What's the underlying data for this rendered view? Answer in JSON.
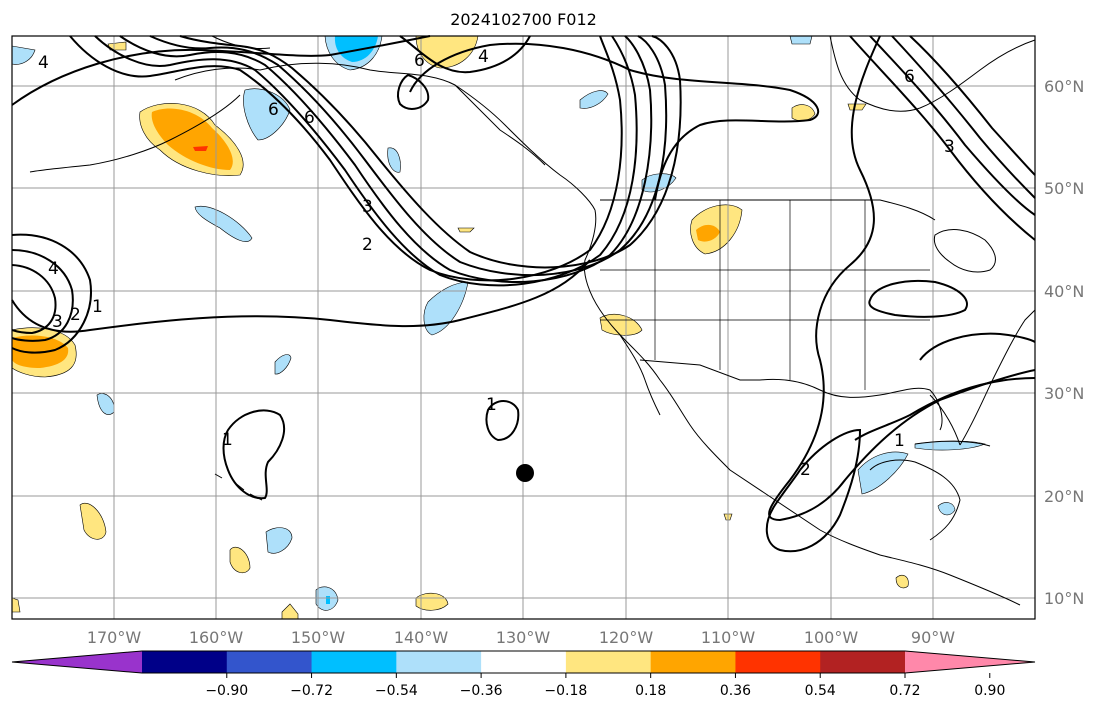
{
  "title": "2024102700 F012",
  "longitude_labels": [
    "170°W",
    "160°W",
    "150°W",
    "140°W",
    "130°W",
    "120°W",
    "110°W",
    "100°W",
    "90°W"
  ],
  "latitude_labels": [
    "10°N",
    "20°N",
    "30°N",
    "40°N",
    "50°N",
    "60°N"
  ],
  "colorbar": {
    "colors": [
      "#9933cc",
      "#000088",
      "#3355cc",
      "#00bfff",
      "#aee0fa",
      "#ffffff",
      "#ffe680",
      "#ffa500",
      "#ff3300",
      "#b22222",
      "#ff88aa"
    ],
    "tick_labels": [
      "−0.90",
      "−0.72",
      "−0.54",
      "−0.36",
      "−0.18",
      "0.18",
      "0.36",
      "0.54",
      "0.72",
      "0.90"
    ]
  },
  "contour_labels": [
    "4",
    "6",
    "6",
    "4",
    "6",
    "3",
    "2",
    "6",
    "3",
    "4",
    "3",
    "2",
    "1",
    "1",
    "1",
    "2",
    "1"
  ],
  "marker": {
    "label": "marker",
    "lon": -130,
    "lat": 22
  },
  "colors": {
    "contour": "#000000",
    "coast": "#000000",
    "grid": "#999999"
  }
}
